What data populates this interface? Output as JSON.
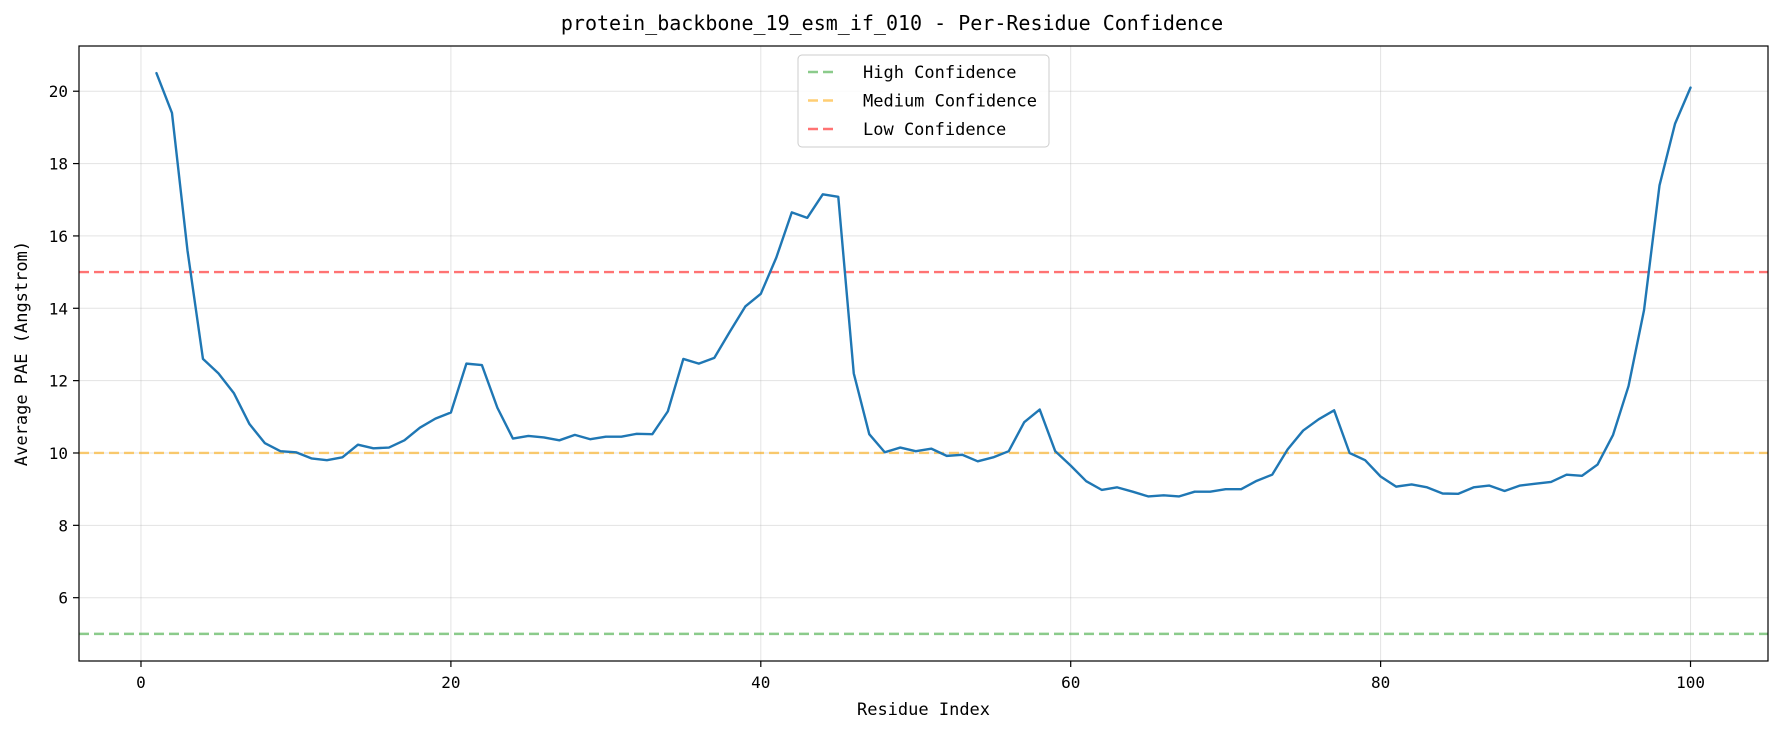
{
  "chart_data": {
    "type": "line",
    "title": "protein_backbone_19_esm_if_010 - Per-Residue Confidence",
    "xlabel": "Residue Index",
    "ylabel": "Average PAE (Angstrom)",
    "xlim": [
      -4,
      105
    ],
    "ylim": [
      4.25,
      21.25
    ],
    "xticks": [
      0,
      20,
      40,
      60,
      80,
      100
    ],
    "yticks": [
      6,
      8,
      10,
      12,
      14,
      16,
      18,
      20
    ],
    "grid": true,
    "legend_position": "top-center",
    "series": [
      {
        "color": "#1f77b4",
        "x": [
          1,
          2,
          3,
          4,
          5,
          6,
          7,
          8,
          9,
          10,
          11,
          12,
          13,
          14,
          15,
          16,
          17,
          18,
          19,
          20,
          21,
          22,
          23,
          24,
          25,
          26,
          27,
          28,
          29,
          30,
          31,
          32,
          33,
          34,
          35,
          36,
          37,
          38,
          39,
          40,
          41,
          42,
          43,
          44,
          45,
          46,
          47,
          48,
          49,
          50,
          51,
          52,
          53,
          54,
          55,
          56,
          57,
          58,
          59,
          60,
          61,
          62,
          63,
          64,
          65,
          66,
          67,
          68,
          69,
          70,
          71,
          72,
          73,
          74,
          75,
          76,
          77,
          78,
          79,
          80,
          81,
          82,
          83,
          84,
          85,
          86,
          87,
          88,
          89,
          90,
          91,
          92,
          93,
          94,
          95,
          96,
          97,
          98,
          99,
          100
        ],
        "values": [
          20.5,
          19.4,
          15.6,
          12.6,
          12.2,
          11.65,
          10.8,
          10.27,
          10.05,
          10.02,
          9.85,
          9.8,
          9.88,
          10.23,
          10.13,
          10.15,
          10.35,
          10.7,
          10.95,
          11.12,
          12.47,
          12.43,
          11.25,
          10.4,
          10.47,
          10.43,
          10.35,
          10.5,
          10.38,
          10.45,
          10.45,
          10.53,
          10.52,
          11.15,
          12.6,
          12.47,
          12.63,
          13.35,
          14.05,
          14.4,
          15.4,
          16.65,
          16.5,
          17.15,
          17.08,
          12.2,
          10.52,
          10.02,
          10.15,
          10.05,
          10.12,
          9.92,
          9.95,
          9.77,
          9.88,
          10.05,
          10.85,
          11.2,
          10.05,
          9.65,
          9.22,
          8.98,
          9.05,
          8.93,
          8.8,
          8.83,
          8.8,
          8.93,
          8.93,
          9.0,
          9.0,
          9.23,
          9.4,
          10.1,
          10.62,
          10.93,
          11.18,
          10.0,
          9.8,
          9.35,
          9.07,
          9.13,
          9.05,
          8.88,
          8.87,
          9.05,
          9.1,
          8.95,
          9.1,
          9.15,
          9.2,
          9.4,
          9.37,
          9.68,
          10.5,
          11.85,
          13.95,
          17.4,
          19.1,
          20.1
        ]
      }
    ],
    "reference_lines": [
      {
        "name": "High Confidence",
        "y": 5,
        "color": "#2ca02c"
      },
      {
        "name": "Medium Confidence",
        "y": 10,
        "color": "#ffa500"
      },
      {
        "name": "Low Confidence",
        "y": 15,
        "color": "#ff0000"
      }
    ]
  }
}
